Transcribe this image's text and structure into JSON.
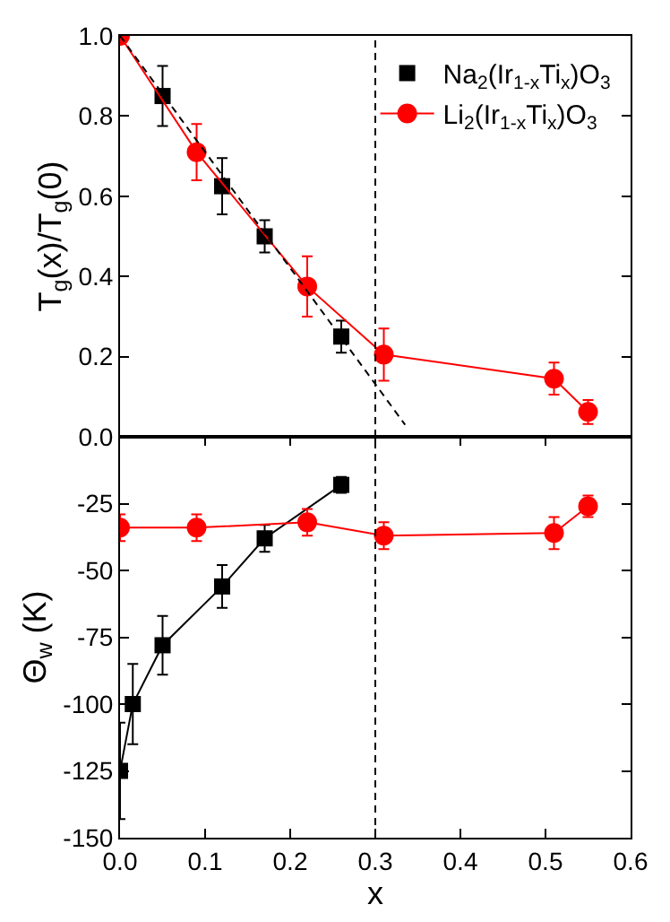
{
  "chart_data": [
    {
      "type": "scatter",
      "ylabel": "T$_{g}$(x)/T$_{g}$(0)",
      "xlim": [
        0,
        0.6
      ],
      "ylim": [
        0,
        1.0
      ],
      "yticks": [
        {
          "value": 0,
          "label": "0.0"
        },
        0.2,
        0.4,
        0.6,
        0.8,
        {
          "value": 1,
          "label": "1.0"
        }
      ],
      "tick_labels": "y",
      "legend": "top right",
      "ref_lines": [
        {
          "axis": "x",
          "value": 0.3,
          "color": "#000000",
          "line_style": "dashed"
        }
      ],
      "series": [
        {
          "name": "Na$_{2}$(Ir$_{1-x}$Ti$_{x}$)O$_{3}$",
          "color": "#000000",
          "marker": "square",
          "x": [
            0.05,
            0.12,
            0.17,
            0.26
          ],
          "values": [
            0.85,
            0.625,
            0.5,
            0.25
          ],
          "errors": [
            0.075,
            0.07,
            0.04,
            0.04
          ]
        },
        {
          "name": "Li$_{2}$(Ir$_{1-x}$Ti$_{x}$)O$_{3}$",
          "type": "line",
          "color": "#ff0000",
          "marker": "circle",
          "line_style": "solid",
          "x": [
            0,
            0.09,
            0.22,
            0.31,
            0.51,
            0.55
          ],
          "values": [
            1.0,
            0.71,
            0.375,
            0.205,
            0.145,
            0.062
          ],
          "errors": [
            null,
            0.07,
            0.075,
            0.065,
            0.04,
            0.03
          ]
        },
        {
          "type": "line",
          "color": "#000000",
          "marker": "none",
          "line_style": "dashed",
          "x": [
            0,
            0.335
          ],
          "values": [
            1.0,
            0.03
          ]
        }
      ]
    },
    {
      "type": "line",
      "xlabel": "x",
      "ylabel": "Θ$_{w}$ (K)",
      "xlim": [
        0,
        0.6
      ],
      "ylim": [
        -150,
        0
      ],
      "xticks": [
        {
          "value": 0,
          "label": "0.0"
        },
        0.1,
        0.2,
        0.3,
        0.4,
        0.5,
        0.6
      ],
      "yticks": [
        -150,
        -125,
        -100,
        -75,
        -50,
        -25
      ],
      "ref_lines": [
        {
          "axis": "x",
          "value": 0.3,
          "color": "#000000",
          "line_style": "dashed"
        }
      ],
      "series": [
        {
          "color": "#000000",
          "marker": "square",
          "line_style": "solid",
          "x": [
            0,
            0.015,
            0.05,
            0.12,
            0.17,
            0.26
          ],
          "values": [
            -125,
            -100,
            -78,
            -56,
            -38,
            -18
          ],
          "errors": [
            18,
            15,
            11,
            8,
            5,
            3
          ]
        },
        {
          "color": "#ff0000",
          "marker": "circle",
          "line_style": "solid",
          "x": [
            0,
            0.09,
            0.22,
            0.31,
            0.51,
            0.55
          ],
          "values": [
            -34,
            -34,
            -32,
            -37,
            -36,
            -26
          ],
          "errors": [
            5,
            5,
            5,
            5,
            6,
            4
          ]
        }
      ]
    }
  ]
}
